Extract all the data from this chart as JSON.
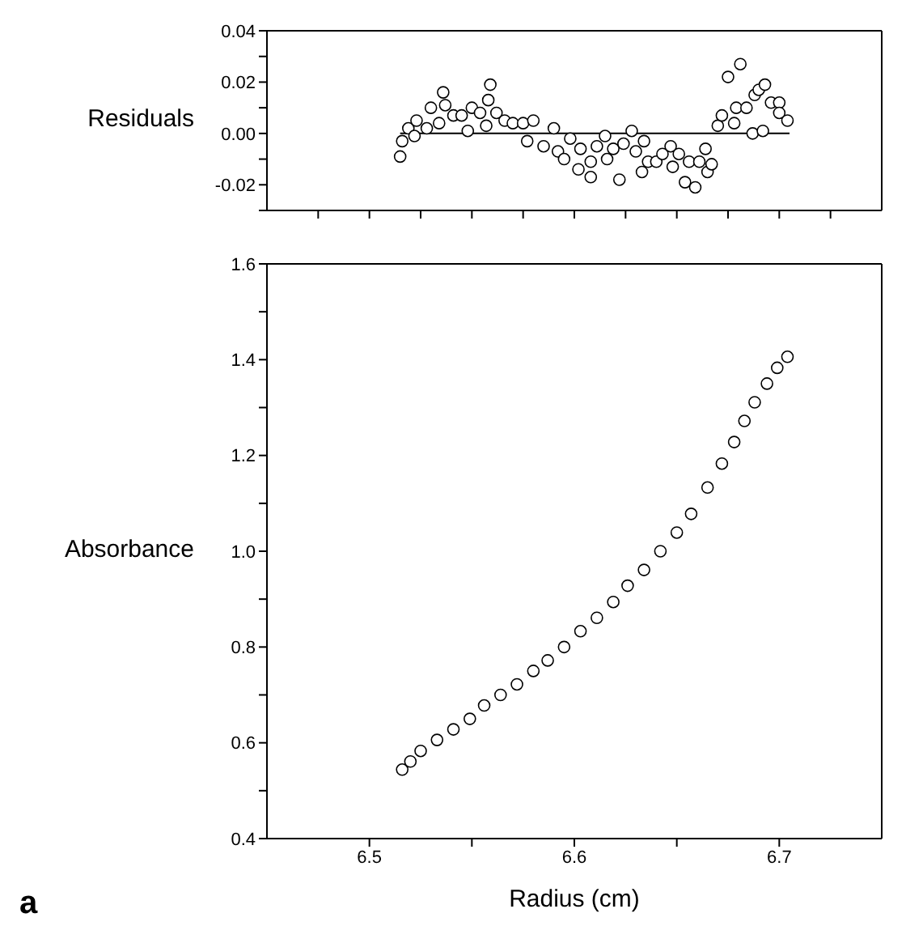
{
  "chart_data": [
    {
      "type": "scatter",
      "ylabel": "Residuals",
      "xlim": [
        6.45,
        6.75
      ],
      "ylim": [
        -0.03,
        0.04
      ],
      "xticks": [
        {
          "value": 6.475,
          "label": null
        },
        {
          "value": 6.5,
          "label": null
        },
        {
          "value": 6.525,
          "label": null
        },
        {
          "value": 6.55,
          "label": null
        },
        {
          "value": 6.575,
          "label": null
        },
        {
          "value": 6.6,
          "label": null
        },
        {
          "value": 6.625,
          "label": null
        },
        {
          "value": 6.65,
          "label": null
        },
        {
          "value": 6.675,
          "label": null
        },
        {
          "value": 6.7,
          "label": null
        },
        {
          "value": 6.725,
          "label": null
        }
      ],
      "yticks": [
        {
          "value": -0.03,
          "label": null
        },
        -0.02,
        {
          "value": -0.01,
          "label": null
        },
        {
          "value": 0,
          "label": "0.00"
        },
        {
          "value": 0.01,
          "label": null
        },
        0.02,
        {
          "value": 0.03,
          "label": null
        },
        0.04
      ],
      "tick_labels": "y",
      "marker": "circle",
      "series": [
        {
          "type": "scatter",
          "color": "#000000",
          "x": [
            6.515,
            6.516,
            6.519,
            6.522,
            6.523,
            6.528,
            6.53,
            6.534,
            6.536,
            6.537,
            6.541,
            6.545,
            6.548,
            6.55,
            6.554,
            6.557,
            6.559,
            6.558,
            6.562,
            6.566,
            6.57,
            6.575,
            6.577,
            6.58,
            6.585,
            6.59,
            6.592,
            6.595,
            6.598,
            6.602,
            6.603,
            6.608,
            6.608,
            6.611,
            6.615,
            6.616,
            6.619,
            6.622,
            6.624,
            6.628,
            6.63,
            6.633,
            6.634,
            6.636,
            6.64,
            6.643,
            6.647,
            6.648,
            6.651,
            6.654,
            6.656,
            6.659,
            6.661,
            6.664,
            6.665,
            6.667,
            6.67,
            6.672,
            6.675,
            6.678,
            6.679,
            6.681,
            6.684,
            6.687,
            6.688,
            6.69,
            6.692,
            6.693,
            6.696,
            6.7,
            6.7,
            6.704
          ],
          "values": [
            -0.009,
            -0.003,
            0.002,
            -0.001,
            0.005,
            0.002,
            0.01,
            0.004,
            0.016,
            0.011,
            0.007,
            0.007,
            0.001,
            0.01,
            0.008,
            0.003,
            0.019,
            0.013,
            0.008,
            0.005,
            0.004,
            0.004,
            -0.003,
            0.005,
            -0.005,
            0.002,
            -0.007,
            -0.01,
            -0.002,
            -0.014,
            -0.006,
            -0.017,
            -0.011,
            -0.005,
            -0.001,
            -0.01,
            -0.006,
            -0.018,
            -0.004,
            0.001,
            -0.007,
            -0.015,
            -0.003,
            -0.011,
            -0.011,
            -0.008,
            -0.005,
            -0.013,
            -0.008,
            -0.019,
            -0.011,
            -0.021,
            -0.011,
            -0.006,
            -0.015,
            -0.012,
            0.003,
            0.007,
            0.022,
            0.004,
            0.01,
            0.027,
            0.01,
            0,
            0.015,
            0.017,
            0.001,
            0.019,
            0.012,
            0.012,
            0.008,
            0.005
          ]
        },
        {
          "type": "line",
          "marker": "none",
          "color": "#000000",
          "x": [
            6.515,
            6.705
          ],
          "values": [
            0,
            0
          ]
        }
      ]
    },
    {
      "type": "scatter",
      "ylabel": "Absorbance",
      "xlabel": "Radius (cm)",
      "annotations": [
        "a"
      ],
      "xlim": [
        6.45,
        6.75
      ],
      "ylim": [
        0.4,
        1.6
      ],
      "xticks": [
        6.5,
        {
          "value": 6.55,
          "label": null
        },
        6.6,
        {
          "value": 6.65,
          "label": null
        },
        6.7
      ],
      "yticks": [
        0.4,
        {
          "value": 0.5,
          "label": null
        },
        0.6,
        {
          "value": 0.7,
          "label": null
        },
        0.8,
        {
          "value": 0.9,
          "label": null
        },
        {
          "value": 1,
          "label": "1.0"
        },
        {
          "value": 1.1,
          "label": null
        },
        1.2,
        {
          "value": 1.3,
          "label": null
        },
        1.4,
        {
          "value": 1.5,
          "label": null
        },
        1.6
      ],
      "marker": "circle",
      "series": [
        {
          "type": "scatter",
          "color": "#000000",
          "x": [
            6.516,
            6.52,
            6.525,
            6.533,
            6.541,
            6.549,
            6.556,
            6.564,
            6.572,
            6.58,
            6.587,
            6.595,
            6.603,
            6.611,
            6.619,
            6.626,
            6.634,
            6.642,
            6.65,
            6.657,
            6.665,
            6.672,
            6.678,
            6.683,
            6.688,
            6.694,
            6.699,
            6.704
          ],
          "values": [
            0.544,
            0.561,
            0.583,
            0.606,
            0.628,
            0.65,
            0.678,
            0.7,
            0.722,
            0.75,
            0.772,
            0.8,
            0.833,
            0.861,
            0.894,
            0.928,
            0.961,
            1,
            1.039,
            1.078,
            1.133,
            1.183,
            1.228,
            1.272,
            1.311,
            1.35,
            1.383,
            1.406
          ]
        }
      ]
    }
  ]
}
